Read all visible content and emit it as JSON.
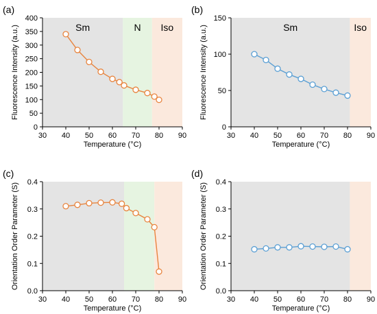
{
  "colors": {
    "orange_series": "#e8843e",
    "blue_series": "#5a9fd4",
    "sm_phase": "#e4e4e4",
    "n_phase": "#e6f4e1",
    "iso_phase": "#fbe9dd",
    "marker_fill": "#ffffff"
  },
  "chart_data": [
    {
      "panel": "(a)",
      "type": "line",
      "xlabel": "Temperature (°C)",
      "ylabel": "Fluorescence Intensity (a.u.)",
      "xlim": [
        30,
        90
      ],
      "ylim": [
        0,
        400
      ],
      "xticks": [
        30,
        40,
        50,
        60,
        70,
        80,
        90
      ],
      "yticks": [
        0,
        50,
        100,
        150,
        200,
        250,
        300,
        350,
        400
      ],
      "grid": false,
      "legend": "none",
      "regions": [
        {
          "label": "Sm",
          "from": 30,
          "to": 64.5,
          "color": "#e4e4e4"
        },
        {
          "label": "N",
          "from": 64.5,
          "to": 77,
          "color": "#e6f4e1"
        },
        {
          "label": "Iso",
          "from": 77,
          "to": 90,
          "color": "#fbe9dd"
        }
      ],
      "series": [
        {
          "color": "#e8843e",
          "x": [
            40,
            45,
            50,
            55,
            60,
            63,
            65,
            70,
            75,
            78,
            80
          ],
          "y": [
            340,
            282,
            238,
            202,
            176,
            164,
            152,
            136,
            124,
            111,
            99
          ]
        }
      ]
    },
    {
      "panel": "(b)",
      "type": "line",
      "xlabel": "Temperature (°C)",
      "ylabel": "Fluorescence Intensity (a.u.)",
      "xlim": [
        30,
        90
      ],
      "ylim": [
        0,
        150
      ],
      "xticks": [
        30,
        40,
        50,
        60,
        70,
        80,
        90
      ],
      "yticks": [
        0,
        50,
        100,
        150
      ],
      "grid": false,
      "legend": "none",
      "regions": [
        {
          "label": "Sm",
          "from": 30,
          "to": 81,
          "color": "#e4e4e4"
        },
        {
          "label": "Iso",
          "from": 81,
          "to": 90,
          "color": "#fbe9dd"
        }
      ],
      "series": [
        {
          "color": "#5a9fd4",
          "x": [
            40,
            45,
            50,
            55,
            60,
            65,
            70,
            75,
            80
          ],
          "y": [
            100,
            92,
            80,
            72,
            66,
            58,
            52,
            47,
            43
          ]
        }
      ]
    },
    {
      "panel": "(c)",
      "type": "line",
      "xlabel": "Temperature (°C)",
      "ylabel": "Orientation Order Parameter (S)",
      "xlim": [
        30,
        90
      ],
      "ylim": [
        0,
        0.4
      ],
      "xticks": [
        30,
        40,
        50,
        60,
        70,
        80,
        90
      ],
      "yticks": [
        0,
        0.1,
        0.2,
        0.3,
        0.4
      ],
      "ytick_labels": [
        "0.0",
        "0.1",
        "0.2",
        "0.3",
        "0.4"
      ],
      "grid": false,
      "legend": "none",
      "regions": [
        {
          "label": "",
          "from": 30,
          "to": 65,
          "color": "#e4e4e4"
        },
        {
          "label": "",
          "from": 65,
          "to": 78,
          "color": "#e6f4e1"
        },
        {
          "label": "",
          "from": 78,
          "to": 90,
          "color": "#fbe9dd"
        }
      ],
      "series": [
        {
          "color": "#e8843e",
          "x": [
            40,
            45,
            50,
            55,
            60,
            64,
            66,
            70,
            75,
            78,
            80
          ],
          "y": [
            0.31,
            0.315,
            0.321,
            0.323,
            0.324,
            0.319,
            0.303,
            0.285,
            0.262,
            0.233,
            0.07
          ]
        }
      ]
    },
    {
      "panel": "(d)",
      "type": "line",
      "xlabel": "Temperature (°C)",
      "ylabel": "Orientation Order Parameter (S)",
      "xlim": [
        30,
        90
      ],
      "ylim": [
        0,
        0.4
      ],
      "xticks": [
        30,
        40,
        50,
        60,
        70,
        80,
        90
      ],
      "yticks": [
        0,
        0.1,
        0.2,
        0.3,
        0.4
      ],
      "ytick_labels": [
        "0.0",
        "0.1",
        "0.2",
        "0.3",
        "0.4"
      ],
      "grid": false,
      "legend": "none",
      "regions": [
        {
          "label": "",
          "from": 30,
          "to": 81,
          "color": "#e4e4e4"
        },
        {
          "label": "",
          "from": 81,
          "to": 90,
          "color": "#fbe9dd"
        }
      ],
      "series": [
        {
          "color": "#5a9fd4",
          "x": [
            40,
            45,
            50,
            55,
            60,
            65,
            70,
            75,
            80
          ],
          "y": [
            0.152,
            0.155,
            0.159,
            0.159,
            0.163,
            0.162,
            0.161,
            0.162,
            0.152
          ]
        }
      ]
    }
  ]
}
